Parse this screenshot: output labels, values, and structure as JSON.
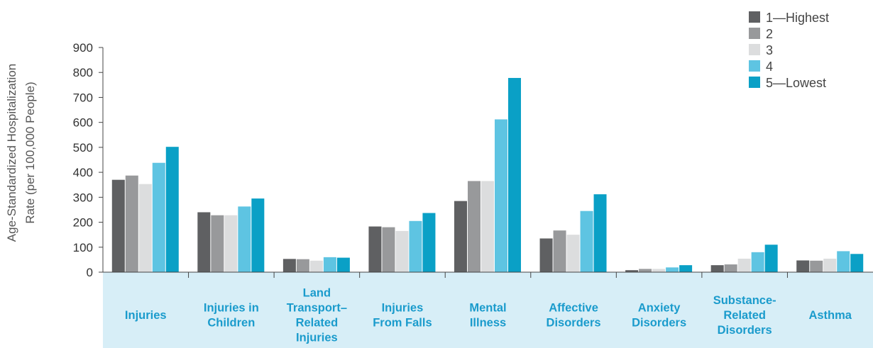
{
  "chart_data": {
    "type": "bar",
    "title": "",
    "xlabel": "",
    "ylabel": [
      "Age-Standardized Hospitalization",
      "Rate (per 100,000 People)"
    ],
    "ylim": [
      0,
      900
    ],
    "yticks": [
      0,
      100,
      200,
      300,
      400,
      500,
      600,
      700,
      800,
      900
    ],
    "grid": false,
    "legend_position": "top-right",
    "categories": [
      [
        "Injuries"
      ],
      [
        "Injuries in",
        "Children"
      ],
      [
        "Land",
        "Transport–",
        "Related",
        "Injuries"
      ],
      [
        "Injuries",
        "From Falls"
      ],
      [
        "Mental",
        "Illness"
      ],
      [
        "Affective",
        "Disorders"
      ],
      [
        "Anxiety",
        "Disorders"
      ],
      [
        "Substance-",
        "Related",
        "Disorders"
      ],
      [
        "Asthma"
      ]
    ],
    "series": [
      {
        "name": "1—Highest",
        "color": "#5f6062",
        "values": [
          370,
          240,
          53,
          183,
          285,
          135,
          8,
          28,
          47
        ]
      },
      {
        "name": "2",
        "color": "#98999b",
        "values": [
          387,
          228,
          52,
          180,
          365,
          167,
          13,
          31,
          46
        ]
      },
      {
        "name": "3",
        "color": "#dcddde",
        "values": [
          353,
          228,
          46,
          165,
          365,
          150,
          13,
          54,
          54
        ]
      },
      {
        "name": "4",
        "color": "#5ec4e2",
        "values": [
          438,
          263,
          60,
          205,
          612,
          245,
          19,
          80,
          84
        ]
      },
      {
        "name": "5—Lowest",
        "color": "#0aa0c6",
        "values": [
          502,
          295,
          58,
          237,
          778,
          312,
          28,
          110,
          73
        ]
      }
    ],
    "category_band_color": "#d7eef7",
    "category_text_color": "#1a9bcc"
  }
}
